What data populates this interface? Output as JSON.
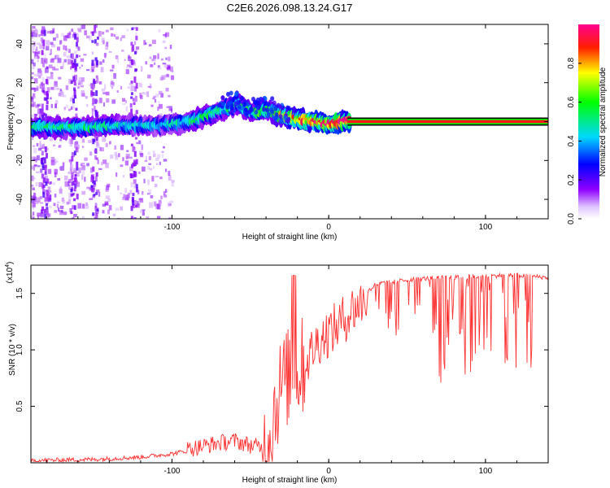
{
  "chart_data": [
    {
      "type": "heatmap",
      "title": "C2E6.2026.098.13.24.G17",
      "xlabel": "Height of straight line (km)",
      "ylabel": "Frequency (Hz)",
      "xlim": [
        -190,
        140
      ],
      "ylim": [
        -50,
        50
      ],
      "xticks": [
        -100,
        0,
        100
      ],
      "yticks": [
        -40,
        -20,
        0,
        20,
        40
      ],
      "colorbar": {
        "label": "Normalized spectral amplitude",
        "range": [
          0,
          1
        ],
        "ticks": [
          0.0,
          0.2,
          0.4,
          0.6,
          0.8
        ],
        "colors": [
          "#ffffff",
          "#d8b8ff",
          "#9000ff",
          "#0000ff",
          "#00e0e0",
          "#00ff00",
          "#ffff00",
          "#ff0000",
          "#ff00a0"
        ]
      },
      "ridge": {
        "x": [
          -190,
          -160,
          -130,
          -110,
          -95,
          -85,
          -75,
          -65,
          -58,
          -52,
          -45,
          -38,
          -32,
          -25,
          -18,
          -10,
          0,
          10,
          15,
          140
        ],
        "freq": [
          -3,
          -3,
          -2,
          -2,
          -1,
          1,
          4,
          7,
          9,
          6,
          5,
          6,
          3,
          2,
          1,
          0,
          -1,
          0,
          0,
          0
        ],
        "amplitude": [
          0.5,
          0.5,
          0.45,
          0.4,
          0.45,
          0.5,
          0.55,
          0.5,
          0.5,
          0.55,
          0.6,
          0.55,
          0.7,
          0.8,
          0.85,
          0.9,
          0.9,
          0.95,
          1.0,
          1.0
        ]
      },
      "steady_line": {
        "x_start": 12,
        "x_end": 140,
        "freq": 0,
        "amplitude": 1.0
      }
    },
    {
      "type": "line",
      "xlabel": "Height of straight line (km)",
      "ylabel": "SNR (10 * v/v)",
      "y_scale_label": "(x10",
      "y_scale_exp": "4",
      "xlim": [
        -190,
        140
      ],
      "ylim": [
        0,
        1.75
      ],
      "xticks": [
        -100,
        0,
        100
      ],
      "yticks": [
        0.5,
        1.0,
        1.5
      ],
      "series": [
        {
          "name": "SNR",
          "color": "#ff3030",
          "x": [
            -190,
            -150,
            -120,
            -100,
            -85,
            -70,
            -60,
            -50,
            -42,
            -38,
            -34,
            -30,
            -26,
            -22,
            -18,
            -14,
            -10,
            -5,
            0,
            5,
            10,
            15,
            20,
            25,
            30,
            40,
            50,
            60,
            70,
            80,
            90,
            100,
            110,
            120,
            130,
            140
          ],
          "values": [
            0.02,
            0.03,
            0.05,
            0.08,
            0.12,
            0.16,
            0.18,
            0.14,
            0.12,
            0.3,
            0.55,
            0.75,
            0.8,
            0.85,
            0.88,
            0.95,
            1.05,
            1.15,
            1.2,
            1.25,
            1.32,
            1.4,
            1.45,
            1.52,
            1.58,
            1.6,
            1.62,
            1.63,
            1.64,
            1.64,
            1.65,
            1.65,
            1.66,
            1.66,
            1.65,
            1.64
          ]
        }
      ]
    }
  ]
}
